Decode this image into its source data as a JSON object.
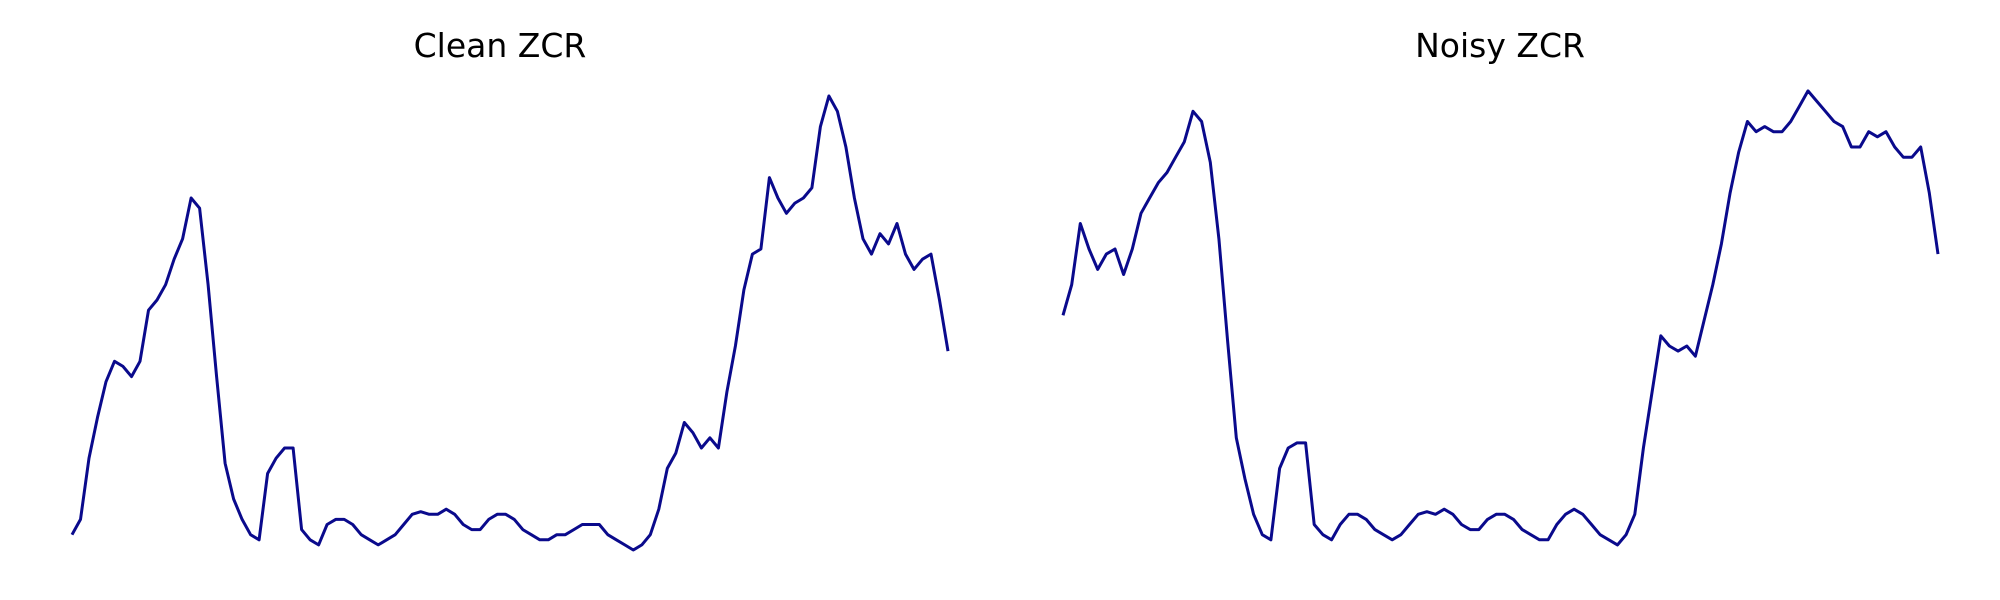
{
  "chart_data": [
    {
      "type": "line",
      "title": "Clean ZCR",
      "color": "#0a0a8c",
      "grid": false,
      "axes_visible": false,
      "values": [
        0.1,
        0.13,
        0.25,
        0.33,
        0.4,
        0.44,
        0.43,
        0.41,
        0.44,
        0.54,
        0.56,
        0.59,
        0.64,
        0.68,
        0.76,
        0.74,
        0.59,
        0.41,
        0.24,
        0.17,
        0.13,
        0.1,
        0.09,
        0.22,
        0.25,
        0.27,
        0.27,
        0.11,
        0.09,
        0.08,
        0.12,
        0.13,
        0.13,
        0.12,
        0.1,
        0.09,
        0.08,
        0.09,
        0.1,
        0.12,
        0.14,
        0.145,
        0.14,
        0.14,
        0.15,
        0.14,
        0.12,
        0.11,
        0.11,
        0.13,
        0.14,
        0.14,
        0.13,
        0.11,
        0.1,
        0.09,
        0.09,
        0.1,
        0.1,
        0.11,
        0.12,
        0.12,
        0.12,
        0.1,
        0.09,
        0.08,
        0.07,
        0.08,
        0.1,
        0.15,
        0.23,
        0.26,
        0.32,
        0.3,
        0.27,
        0.29,
        0.27,
        0.38,
        0.47,
        0.58,
        0.65,
        0.66,
        0.8,
        0.76,
        0.73,
        0.75,
        0.76,
        0.78,
        0.9,
        0.96,
        0.93,
        0.86,
        0.76,
        0.68,
        0.65,
        0.69,
        0.67,
        0.71,
        0.65,
        0.62,
        0.64,
        0.65,
        0.56,
        0.46
      ]
    },
    {
      "type": "line",
      "title": "Noisy ZCR",
      "color": "#0a0a8c",
      "grid": false,
      "axes_visible": false,
      "values": [
        0.53,
        0.59,
        0.71,
        0.66,
        0.62,
        0.65,
        0.66,
        0.61,
        0.66,
        0.73,
        0.76,
        0.79,
        0.81,
        0.84,
        0.87,
        0.93,
        0.91,
        0.83,
        0.68,
        0.48,
        0.29,
        0.21,
        0.14,
        0.1,
        0.09,
        0.23,
        0.27,
        0.28,
        0.28,
        0.12,
        0.1,
        0.09,
        0.12,
        0.14,
        0.14,
        0.13,
        0.11,
        0.1,
        0.09,
        0.1,
        0.12,
        0.14,
        0.145,
        0.14,
        0.15,
        0.14,
        0.12,
        0.11,
        0.11,
        0.13,
        0.14,
        0.14,
        0.13,
        0.11,
        0.1,
        0.09,
        0.09,
        0.12,
        0.14,
        0.15,
        0.14,
        0.12,
        0.1,
        0.09,
        0.08,
        0.1,
        0.14,
        0.27,
        0.38,
        0.49,
        0.47,
        0.46,
        0.47,
        0.45,
        0.52,
        0.59,
        0.67,
        0.77,
        0.85,
        0.91,
        0.89,
        0.9,
        0.89,
        0.89,
        0.91,
        0.94,
        0.97,
        0.95,
        0.93,
        0.91,
        0.9,
        0.86,
        0.86,
        0.89,
        0.88,
        0.89,
        0.86,
        0.84,
        0.84,
        0.86,
        0.77,
        0.65
      ]
    }
  ]
}
